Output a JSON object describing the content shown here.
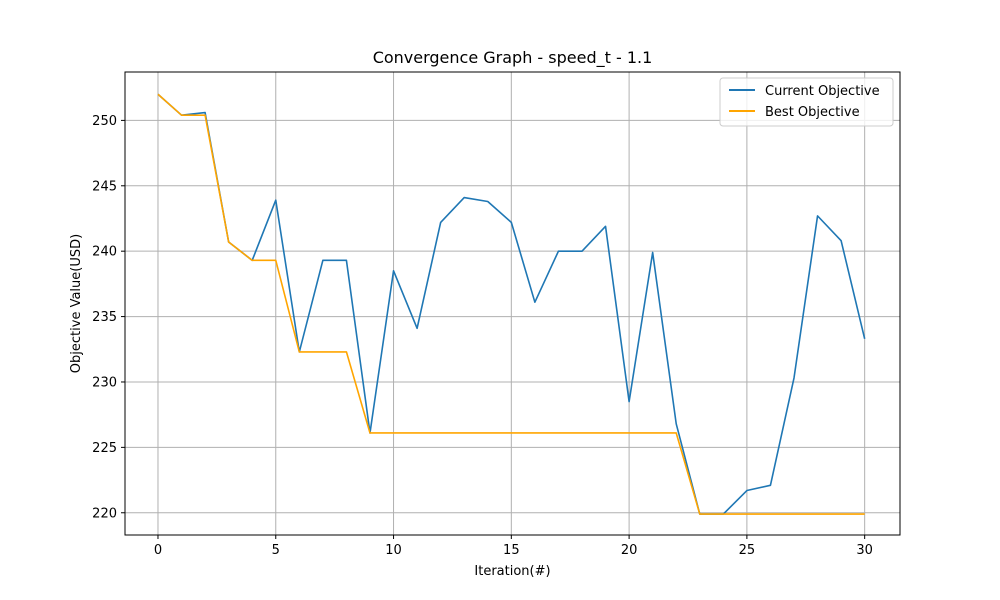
{
  "chart_data": {
    "type": "line",
    "title": "Convergence Graph - speed_t - 1.1",
    "xlabel": "Iteration(#)",
    "ylabel": "Objective Value(USD)",
    "xlim": [
      -1.4,
      31.5
    ],
    "ylim": [
      218.3,
      253.7
    ],
    "x": [
      0,
      1,
      2,
      3,
      4,
      5,
      6,
      7,
      8,
      9,
      10,
      11,
      12,
      13,
      14,
      15,
      16,
      17,
      18,
      19,
      20,
      21,
      22,
      23,
      24,
      25,
      26,
      27,
      28,
      29,
      30
    ],
    "xticks": [
      0,
      5,
      10,
      15,
      20,
      25,
      30
    ],
    "yticks": [
      220,
      225,
      230,
      235,
      240,
      245,
      250
    ],
    "grid": true,
    "legend_position": "top-right",
    "series": [
      {
        "name": "Current Objective",
        "color": "#1f77b4",
        "values": [
          252.0,
          250.4,
          250.6,
          240.7,
          239.3,
          243.9,
          232.3,
          239.3,
          239.3,
          226.1,
          238.5,
          234.1,
          242.2,
          244.1,
          243.8,
          242.2,
          236.1,
          240.0,
          240.0,
          241.9,
          228.5,
          239.9,
          226.8,
          219.9,
          219.9,
          221.7,
          222.1,
          230.3,
          242.7,
          240.8,
          233.3
        ]
      },
      {
        "name": "Best Objective",
        "color": "#ffa500",
        "values": [
          252.0,
          250.4,
          250.4,
          240.7,
          239.3,
          239.3,
          232.3,
          232.3,
          232.3,
          226.1,
          226.1,
          226.1,
          226.1,
          226.1,
          226.1,
          226.1,
          226.1,
          226.1,
          226.1,
          226.1,
          226.1,
          226.1,
          226.1,
          219.9,
          219.9,
          219.9,
          219.9,
          219.9,
          219.9,
          219.9,
          219.9
        ]
      }
    ]
  }
}
